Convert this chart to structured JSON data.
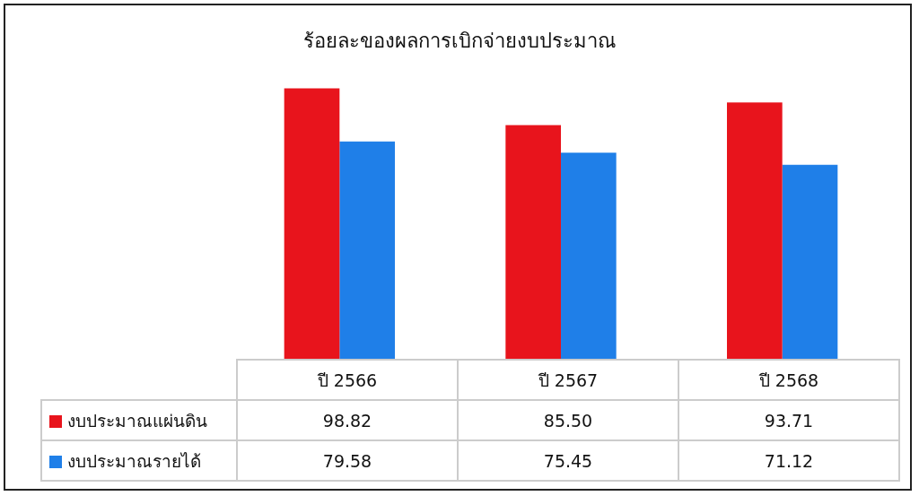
{
  "chart_data": {
    "type": "bar",
    "title": "ร้อยละของผลการเบิกจ่ายงบประมาณ",
    "categories": [
      "ปี 2566",
      "ปี 2567",
      "ปี 2568"
    ],
    "series": [
      {
        "name": "งบประมาณแผ่นดิน",
        "color": "#e8141c",
        "values": [
          98.82,
          85.5,
          93.71
        ],
        "value_labels": [
          "98.82",
          "85.50",
          "93.71"
        ]
      },
      {
        "name": "งบประมาณรายได้",
        "color": "#1f7fe8",
        "values": [
          79.58,
          75.45,
          71.12
        ],
        "value_labels": [
          "79.58",
          "75.45",
          "71.12"
        ]
      }
    ],
    "data_labels": true,
    "legend": "bottom left"
  }
}
